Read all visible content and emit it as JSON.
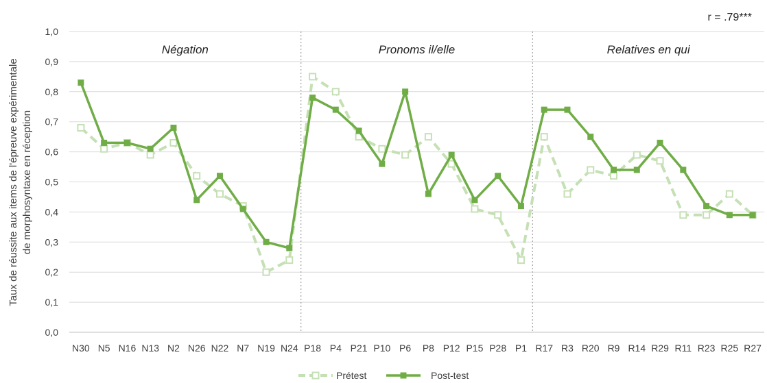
{
  "chart_data": {
    "type": "line",
    "correlation_label": "r = .79***",
    "ylabel_line1": "Taux de réussite aux items de l'épreuve expérimentale",
    "ylabel_line2": "de morphosyntaxe en réception",
    "ylim": [
      0,
      1.0
    ],
    "yticks": [
      "0,0",
      "0,1",
      "0,2",
      "0,3",
      "0,4",
      "0,5",
      "0,6",
      "0,7",
      "0,8",
      "0,9",
      "1,0"
    ],
    "grid": true,
    "legend_position": "bottom",
    "sections": [
      {
        "label": "Négation",
        "start": 0,
        "end": 9
      },
      {
        "label": "Pronoms il/elle",
        "start": 10,
        "end": 19
      },
      {
        "label": "Relatives en qui",
        "start": 20,
        "end": 29
      }
    ],
    "categories": [
      "N30",
      "N5",
      "N16",
      "N13",
      "N2",
      "N26",
      "N22",
      "N7",
      "N19",
      "N24",
      "P18",
      "P4",
      "P21",
      "P10",
      "P6",
      "P8",
      "P12",
      "P15",
      "P28",
      "P1",
      "R17",
      "R3",
      "R20",
      "R9",
      "R14",
      "R29",
      "R11",
      "R23",
      "R25",
      "R27"
    ],
    "series": [
      {
        "name": "Prétest",
        "color": "#c5e0b4",
        "style": "dashed",
        "marker": "open-square",
        "values": [
          0.68,
          0.61,
          0.63,
          0.59,
          0.63,
          0.52,
          0.46,
          0.42,
          0.2,
          0.24,
          0.85,
          0.8,
          0.65,
          0.61,
          0.59,
          0.65,
          0.56,
          0.41,
          0.39,
          0.24,
          0.65,
          0.46,
          0.54,
          0.52,
          0.59,
          0.57,
          0.39,
          0.39,
          0.46,
          0.39
        ]
      },
      {
        "name": "Post-test",
        "color": "#70ad47",
        "style": "solid",
        "marker": "filled-square",
        "values": [
          0.83,
          0.63,
          0.63,
          0.61,
          0.68,
          0.44,
          0.52,
          0.41,
          0.3,
          0.28,
          0.78,
          0.74,
          0.67,
          0.56,
          0.8,
          0.46,
          0.59,
          0.44,
          0.52,
          0.42,
          0.74,
          0.74,
          0.65,
          0.54,
          0.54,
          0.63,
          0.54,
          0.42,
          0.39,
          0.39
        ]
      }
    ]
  }
}
